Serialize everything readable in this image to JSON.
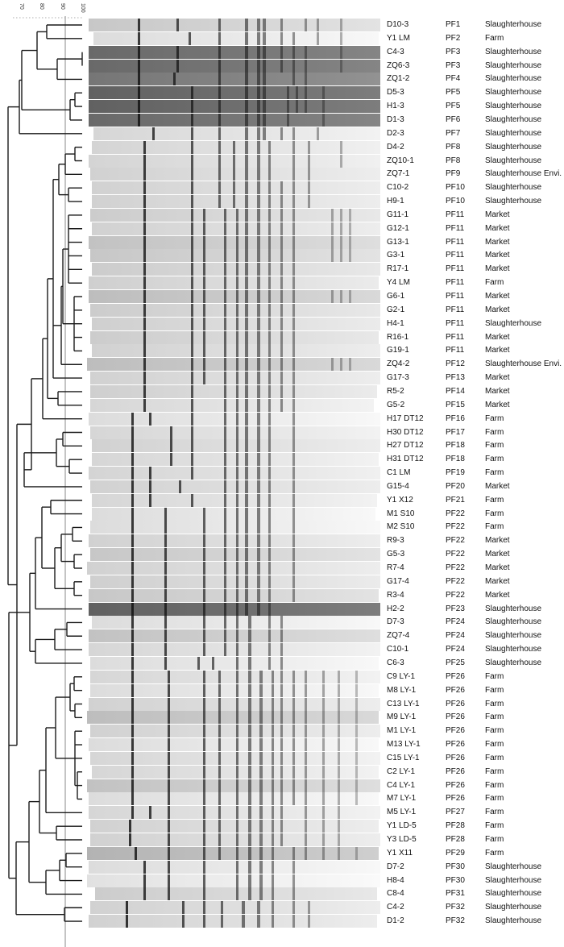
{
  "scale": {
    "ticks": [
      "70",
      "80",
      "90",
      "100"
    ],
    "cutoff": 90
  },
  "colors": {
    "tree": "#1a1a1a",
    "cutoff_line": "#888888",
    "text": "#111111"
  },
  "isolates": [
    {
      "id": "D10-3",
      "pattern": "PF1",
      "source": "Slaughterhouse",
      "shade": 0.82,
      "bands": [
        0.18,
        0.31,
        0.45,
        0.54,
        0.58,
        0.6,
        0.66,
        0.74,
        0.78,
        0.86
      ]
    },
    {
      "id": "Y1 LM",
      "pattern": "PF2",
      "source": "Farm",
      "shade": 0.9,
      "bands": [
        0.18,
        0.35,
        0.45,
        0.54,
        0.58,
        0.6,
        0.66,
        0.7,
        0.78,
        0.86
      ]
    },
    {
      "id": "C4-3",
      "pattern": "PF3",
      "source": "Slaughterhouse",
      "shade": 0.45,
      "bands": [
        0.18,
        0.31,
        0.45,
        0.54,
        0.58,
        0.6,
        0.66,
        0.7,
        0.74,
        0.86
      ]
    },
    {
      "id": "ZQ6-3",
      "pattern": "PF3",
      "source": "Slaughterhouse",
      "shade": 0.45,
      "bands": [
        0.18,
        0.31,
        0.45,
        0.54,
        0.58,
        0.6,
        0.66,
        0.7,
        0.74,
        0.86
      ]
    },
    {
      "id": "ZQ1-2",
      "pattern": "PF4",
      "source": "Slaughterhouse",
      "shade": 0.5,
      "bands": [
        0.18,
        0.3,
        0.45,
        0.54,
        0.58,
        0.6,
        0.7,
        0.74
      ]
    },
    {
      "id": "D5-3",
      "pattern": "PF5",
      "source": "Slaughterhouse",
      "shade": 0.42,
      "bands": [
        0.18,
        0.36,
        0.45,
        0.54,
        0.58,
        0.6,
        0.68,
        0.71,
        0.74,
        0.8
      ]
    },
    {
      "id": "H1-3",
      "pattern": "PF5",
      "source": "Slaughterhouse",
      "shade": 0.42,
      "bands": [
        0.18,
        0.36,
        0.45,
        0.54,
        0.58,
        0.6,
        0.68,
        0.71,
        0.74,
        0.8
      ]
    },
    {
      "id": "D1-3",
      "pattern": "PF6",
      "source": "Slaughterhouse",
      "shade": 0.45,
      "bands": [
        0.18,
        0.36,
        0.45,
        0.54,
        0.58,
        0.6,
        0.68,
        0.8
      ]
    },
    {
      "id": "D2-3",
      "pattern": "PF7",
      "source": "Slaughterhouse",
      "shade": 0.88,
      "bands": [
        0.23,
        0.36,
        0.45,
        0.54,
        0.58,
        0.6,
        0.66,
        0.7,
        0.78
      ]
    },
    {
      "id": "D4-2",
      "pattern": "PF8",
      "source": "Slaughterhouse",
      "shade": 0.87,
      "bands": [
        0.2,
        0.36,
        0.45,
        0.5,
        0.54,
        0.58,
        0.62,
        0.7,
        0.75,
        0.86
      ]
    },
    {
      "id": "ZQ10-1",
      "pattern": "PF8",
      "source": "Slaughterhouse",
      "shade": 0.87,
      "bands": [
        0.2,
        0.36,
        0.45,
        0.5,
        0.54,
        0.58,
        0.62,
        0.7,
        0.75,
        0.86
      ]
    },
    {
      "id": "ZQ7-1",
      "pattern": "PF9",
      "source": "Slaughterhouse Envi.",
      "shade": 0.86,
      "bands": [
        0.2,
        0.36,
        0.45,
        0.5,
        0.54,
        0.58,
        0.62,
        0.7,
        0.75
      ]
    },
    {
      "id": "C10-2",
      "pattern": "PF10",
      "source": "Slaughterhouse",
      "shade": 0.86,
      "bands": [
        0.2,
        0.36,
        0.45,
        0.5,
        0.54,
        0.58,
        0.62,
        0.66,
        0.7,
        0.75
      ]
    },
    {
      "id": "H9-1",
      "pattern": "PF10",
      "source": "Slaughterhouse",
      "shade": 0.86,
      "bands": [
        0.2,
        0.36,
        0.45,
        0.5,
        0.54,
        0.58,
        0.62,
        0.66,
        0.7,
        0.75
      ]
    },
    {
      "id": "G11-1",
      "pattern": "PF11",
      "source": "Market",
      "shade": 0.84,
      "bands": [
        0.2,
        0.36,
        0.4,
        0.47,
        0.51,
        0.54,
        0.58,
        0.62,
        0.66,
        0.7,
        0.83,
        0.86,
        0.89
      ]
    },
    {
      "id": "G12-1",
      "pattern": "PF11",
      "source": "Market",
      "shade": 0.86,
      "bands": [
        0.2,
        0.36,
        0.4,
        0.47,
        0.51,
        0.54,
        0.58,
        0.62,
        0.66,
        0.7,
        0.83,
        0.86,
        0.89
      ]
    },
    {
      "id": "G13-1",
      "pattern": "PF11",
      "source": "Market",
      "shade": 0.8,
      "bands": [
        0.2,
        0.36,
        0.4,
        0.47,
        0.51,
        0.54,
        0.58,
        0.62,
        0.66,
        0.7,
        0.83,
        0.86,
        0.89
      ]
    },
    {
      "id": "G3-1",
      "pattern": "PF11",
      "source": "Market",
      "shade": 0.82,
      "bands": [
        0.2,
        0.36,
        0.4,
        0.47,
        0.51,
        0.54,
        0.58,
        0.62,
        0.66,
        0.7,
        0.83,
        0.86,
        0.89
      ]
    },
    {
      "id": "R17-1",
      "pattern": "PF11",
      "source": "Market",
      "shade": 0.84,
      "bands": [
        0.2,
        0.36,
        0.4,
        0.47,
        0.51,
        0.54,
        0.58,
        0.62,
        0.66,
        0.7
      ]
    },
    {
      "id": "Y4 LM",
      "pattern": "PF11",
      "source": "Farm",
      "shade": 0.85,
      "bands": [
        0.2,
        0.36,
        0.4,
        0.47,
        0.51,
        0.54,
        0.58,
        0.62,
        0.66,
        0.7
      ]
    },
    {
      "id": "G6-1",
      "pattern": "PF11",
      "source": "Market",
      "shade": 0.78,
      "bands": [
        0.2,
        0.36,
        0.4,
        0.47,
        0.51,
        0.54,
        0.58,
        0.62,
        0.66,
        0.7,
        0.83,
        0.86,
        0.89
      ]
    },
    {
      "id": "G2-1",
      "pattern": "PF11",
      "source": "Market",
      "shade": 0.84,
      "bands": [
        0.2,
        0.36,
        0.4,
        0.47,
        0.51,
        0.54,
        0.58,
        0.62,
        0.66,
        0.7
      ]
    },
    {
      "id": "H4-1",
      "pattern": "PF11",
      "source": "Slaughterhouse",
      "shade": 0.85,
      "bands": [
        0.2,
        0.36,
        0.4,
        0.47,
        0.51,
        0.54,
        0.58,
        0.62,
        0.66,
        0.7
      ]
    },
    {
      "id": "R16-1",
      "pattern": "PF11",
      "source": "Market",
      "shade": 0.84,
      "bands": [
        0.2,
        0.36,
        0.4,
        0.47,
        0.51,
        0.54,
        0.58,
        0.62,
        0.66,
        0.7
      ]
    },
    {
      "id": "G19-1",
      "pattern": "PF11",
      "source": "Market",
      "shade": 0.86,
      "bands": [
        0.2,
        0.36,
        0.4,
        0.47,
        0.51,
        0.54,
        0.58,
        0.62,
        0.66,
        0.7
      ]
    },
    {
      "id": "ZQ4-2",
      "pattern": "PF12",
      "source": "Slaughterhouse Envi.",
      "shade": 0.78,
      "bands": [
        0.2,
        0.36,
        0.4,
        0.47,
        0.51,
        0.54,
        0.58,
        0.62,
        0.66,
        0.7,
        0.83,
        0.86,
        0.89
      ]
    },
    {
      "id": "G17-3",
      "pattern": "PF13",
      "source": "Market",
      "shade": 0.86,
      "bands": [
        0.2,
        0.36,
        0.4,
        0.47,
        0.51,
        0.54,
        0.58,
        0.62,
        0.66,
        0.7
      ]
    },
    {
      "id": "R5-2",
      "pattern": "PF14",
      "source": "Market",
      "shade": 0.85,
      "bands": [
        0.2,
        0.36,
        0.47,
        0.51,
        0.54,
        0.58,
        0.62,
        0.66,
        0.7
      ]
    },
    {
      "id": "G5-2",
      "pattern": "PF15",
      "source": "Market",
      "shade": 0.88,
      "bands": [
        0.2,
        0.36,
        0.47,
        0.51,
        0.54,
        0.58,
        0.62,
        0.66,
        0.7
      ]
    },
    {
      "id": "H17 DT12",
      "pattern": "PF16",
      "source": "Farm",
      "shade": 0.9,
      "bands": [
        0.16,
        0.22,
        0.36,
        0.47,
        0.51,
        0.54,
        0.58,
        0.62,
        0.7
      ]
    },
    {
      "id": "H30 DT12",
      "pattern": "PF17",
      "source": "Farm",
      "shade": 0.88,
      "bands": [
        0.16,
        0.29,
        0.36,
        0.47,
        0.51,
        0.54,
        0.58,
        0.62,
        0.7
      ]
    },
    {
      "id": "H27 DT12",
      "pattern": "PF18",
      "source": "Farm",
      "shade": 0.86,
      "bands": [
        0.16,
        0.29,
        0.36,
        0.47,
        0.51,
        0.54,
        0.58,
        0.62,
        0.7
      ]
    },
    {
      "id": "H31 DT12",
      "pattern": "PF18",
      "source": "Farm",
      "shade": 0.88,
      "bands": [
        0.16,
        0.29,
        0.36,
        0.47,
        0.51,
        0.54,
        0.58,
        0.62,
        0.7
      ]
    },
    {
      "id": "C1 LM",
      "pattern": "PF19",
      "source": "Farm",
      "shade": 0.87,
      "bands": [
        0.16,
        0.22,
        0.36,
        0.47,
        0.51,
        0.54,
        0.58,
        0.62,
        0.7
      ]
    },
    {
      "id": "G15-4",
      "pattern": "PF20",
      "source": "Market",
      "shade": 0.86,
      "bands": [
        0.16,
        0.22,
        0.32,
        0.47,
        0.51,
        0.54,
        0.58,
        0.62,
        0.7
      ]
    },
    {
      "id": "Y1 X12",
      "pattern": "PF21",
      "source": "Farm",
      "shade": 0.88,
      "bands": [
        0.16,
        0.22,
        0.36,
        0.47,
        0.51,
        0.54,
        0.58,
        0.62,
        0.7
      ]
    },
    {
      "id": "M1 S10",
      "pattern": "PF22",
      "source": "Farm",
      "shade": 0.9,
      "bands": [
        0.16,
        0.27,
        0.4,
        0.47,
        0.51,
        0.54,
        0.58,
        0.62,
        0.7
      ]
    },
    {
      "id": "M2 S10",
      "pattern": "PF22",
      "source": "Farm",
      "shade": 0.9,
      "bands": [
        0.16,
        0.27,
        0.4,
        0.47,
        0.51,
        0.54,
        0.58,
        0.62,
        0.7
      ]
    },
    {
      "id": "R9-3",
      "pattern": "PF22",
      "source": "Market",
      "shade": 0.86,
      "bands": [
        0.16,
        0.27,
        0.4,
        0.47,
        0.51,
        0.54,
        0.58,
        0.62,
        0.7
      ]
    },
    {
      "id": "G5-3",
      "pattern": "PF22",
      "source": "Market",
      "shade": 0.82,
      "bands": [
        0.16,
        0.27,
        0.4,
        0.47,
        0.51,
        0.54,
        0.58,
        0.62,
        0.7
      ]
    },
    {
      "id": "R7-4",
      "pattern": "PF22",
      "source": "Market",
      "shade": 0.86,
      "bands": [
        0.16,
        0.27,
        0.4,
        0.47,
        0.51,
        0.54,
        0.58,
        0.62,
        0.7
      ]
    },
    {
      "id": "G17-4",
      "pattern": "PF22",
      "source": "Market",
      "shade": 0.85,
      "bands": [
        0.16,
        0.27,
        0.4,
        0.47,
        0.51,
        0.54,
        0.58,
        0.62,
        0.7
      ]
    },
    {
      "id": "R3-4",
      "pattern": "PF22",
      "source": "Market",
      "shade": 0.82,
      "bands": [
        0.16,
        0.27,
        0.4,
        0.47,
        0.51,
        0.54,
        0.58,
        0.62,
        0.7
      ]
    },
    {
      "id": "H2-2",
      "pattern": "PF23",
      "source": "Slaughterhouse",
      "shade": 0.42,
      "bands": [
        0.16,
        0.27,
        0.4,
        0.47,
        0.51,
        0.54,
        0.58,
        0.62
      ]
    },
    {
      "id": "D7-3",
      "pattern": "PF24",
      "source": "Slaughterhouse",
      "shade": 0.9,
      "bands": [
        0.16,
        0.27,
        0.4,
        0.47,
        0.51,
        0.55,
        0.62,
        0.66
      ]
    },
    {
      "id": "ZQ7-4",
      "pattern": "PF24",
      "source": "Slaughterhouse",
      "shade": 0.8,
      "bands": [
        0.16,
        0.27,
        0.4,
        0.47,
        0.51,
        0.55,
        0.62,
        0.66
      ]
    },
    {
      "id": "C10-1",
      "pattern": "PF24",
      "source": "Slaughterhouse",
      "shade": 0.88,
      "bands": [
        0.16,
        0.27,
        0.4,
        0.47,
        0.51,
        0.55,
        0.62,
        0.66
      ]
    },
    {
      "id": "C6-3",
      "pattern": "PF25",
      "source": "Slaughterhouse",
      "shade": 0.9,
      "bands": [
        0.16,
        0.27,
        0.38,
        0.43,
        0.51,
        0.55,
        0.62,
        0.66
      ]
    },
    {
      "id": "C9 LY-1",
      "pattern": "PF26",
      "source": "Farm",
      "shade": 0.88,
      "bands": [
        0.16,
        0.28,
        0.4,
        0.45,
        0.51,
        0.55,
        0.59,
        0.63,
        0.66,
        0.7,
        0.74,
        0.8,
        0.85,
        0.91
      ]
    },
    {
      "id": "M8 LY-1",
      "pattern": "PF26",
      "source": "Farm",
      "shade": 0.9,
      "bands": [
        0.16,
        0.28,
        0.4,
        0.45,
        0.51,
        0.55,
        0.59,
        0.63,
        0.66,
        0.7,
        0.74,
        0.8,
        0.85,
        0.91
      ]
    },
    {
      "id": "C13 LY-1",
      "pattern": "PF26",
      "source": "Farm",
      "shade": 0.86,
      "bands": [
        0.16,
        0.28,
        0.4,
        0.45,
        0.51,
        0.55,
        0.59,
        0.63,
        0.66,
        0.7,
        0.74,
        0.8,
        0.85,
        0.91
      ]
    },
    {
      "id": "M9 LY-1",
      "pattern": "PF26",
      "source": "Farm",
      "shade": 0.78,
      "bands": [
        0.16,
        0.28,
        0.4,
        0.45,
        0.51,
        0.55,
        0.59,
        0.63,
        0.66,
        0.7,
        0.74,
        0.8,
        0.85,
        0.91
      ]
    },
    {
      "id": "M1 LY-1",
      "pattern": "PF26",
      "source": "Farm",
      "shade": 0.86,
      "bands": [
        0.16,
        0.28,
        0.4,
        0.45,
        0.51,
        0.55,
        0.59,
        0.63,
        0.66,
        0.7,
        0.74,
        0.8,
        0.85,
        0.91
      ]
    },
    {
      "id": "M13 LY-1",
      "pattern": "PF26",
      "source": "Farm",
      "shade": 0.9,
      "bands": [
        0.16,
        0.28,
        0.4,
        0.45,
        0.51,
        0.55,
        0.59,
        0.63,
        0.66,
        0.7,
        0.74,
        0.8,
        0.85,
        0.91
      ]
    },
    {
      "id": "C15 LY-1",
      "pattern": "PF26",
      "source": "Farm",
      "shade": 0.88,
      "bands": [
        0.16,
        0.28,
        0.4,
        0.45,
        0.51,
        0.55,
        0.59,
        0.63,
        0.66,
        0.7,
        0.74,
        0.8,
        0.85,
        0.91
      ]
    },
    {
      "id": "C2 LY-1",
      "pattern": "PF26",
      "source": "Farm",
      "shade": 0.88,
      "bands": [
        0.16,
        0.28,
        0.4,
        0.45,
        0.51,
        0.55,
        0.59,
        0.63,
        0.66,
        0.7,
        0.74,
        0.8,
        0.85,
        0.91
      ]
    },
    {
      "id": "C4 LY-1",
      "pattern": "PF26",
      "source": "Farm",
      "shade": 0.8,
      "bands": [
        0.16,
        0.28,
        0.4,
        0.45,
        0.51,
        0.55,
        0.59,
        0.63,
        0.66,
        0.7,
        0.74,
        0.8,
        0.85,
        0.91
      ]
    },
    {
      "id": "M7 LY-1",
      "pattern": "PF26",
      "source": "Farm",
      "shade": 0.9,
      "bands": [
        0.16,
        0.28,
        0.4,
        0.45,
        0.51,
        0.55,
        0.59,
        0.63,
        0.66,
        0.7,
        0.74,
        0.8,
        0.85,
        0.91
      ]
    },
    {
      "id": "M5 LY-1",
      "pattern": "PF27",
      "source": "Farm",
      "shade": 0.88,
      "bands": [
        0.16,
        0.22,
        0.28,
        0.4,
        0.45,
        0.51,
        0.55,
        0.59,
        0.63,
        0.66,
        0.74,
        0.8,
        0.85
      ]
    },
    {
      "id": "Y1 LD-5",
      "pattern": "PF28",
      "source": "Farm",
      "shade": 0.86,
      "bands": [
        0.15,
        0.28,
        0.4,
        0.45,
        0.51,
        0.55,
        0.59,
        0.63,
        0.66,
        0.74,
        0.8,
        0.85
      ]
    },
    {
      "id": "Y3 LD-5",
      "pattern": "PF28",
      "source": "Farm",
      "shade": 0.86,
      "bands": [
        0.15,
        0.28,
        0.4,
        0.45,
        0.51,
        0.55,
        0.59,
        0.63,
        0.66,
        0.74,
        0.8,
        0.85
      ]
    },
    {
      "id": "Y1 X11",
      "pattern": "PF29",
      "source": "Farm",
      "shade": 0.74,
      "bands": [
        0.17,
        0.28,
        0.4,
        0.45,
        0.51,
        0.55,
        0.59,
        0.63,
        0.7,
        0.74,
        0.8,
        0.85,
        0.91
      ]
    },
    {
      "id": "D7-2",
      "pattern": "PF30",
      "source": "Slaughterhouse",
      "shade": 0.9,
      "bands": [
        0.2,
        0.28,
        0.4,
        0.51,
        0.55,
        0.59,
        0.63,
        0.7
      ]
    },
    {
      "id": "H8-4",
      "pattern": "PF30",
      "source": "Slaughterhouse",
      "shade": 0.92,
      "bands": [
        0.2,
        0.28,
        0.4,
        0.51,
        0.55,
        0.59,
        0.63,
        0.7
      ]
    },
    {
      "id": "C8-4",
      "pattern": "PF31",
      "source": "Slaughterhouse",
      "shade": 0.84,
      "bands": [
        0.2,
        0.28,
        0.4,
        0.51,
        0.55,
        0.59,
        0.63,
        0.7
      ]
    },
    {
      "id": "C4-2",
      "pattern": "PF32",
      "source": "Slaughterhouse",
      "shade": 0.86,
      "bands": [
        0.14,
        0.33,
        0.4,
        0.46,
        0.53,
        0.58,
        0.63,
        0.7,
        0.75
      ]
    },
    {
      "id": "D1-2",
      "pattern": "PF32",
      "source": "Slaughterhouse",
      "shade": 0.86,
      "bands": [
        0.14,
        0.33,
        0.4,
        0.46,
        0.53,
        0.58,
        0.63,
        0.7,
        0.75
      ]
    }
  ],
  "tree": [
    [
      [
        0,
        1,
        75
      ],
      [
        2,
        3,
        100
      ],
      [
        4,
        80
      ],
      [
        5,
        6,
        98
      ],
      [
        7,
        96
      ],
      [
        8,
        85
      ]
    ],
    [
      [
        [
          9,
          10,
          98
        ],
        [
          11,
          93
        ],
        [
          12,
          13,
          96
        ]
      ],
      82,
      [
        14,
        15,
        16,
        17,
        18,
        19,
        20,
        21,
        22,
        23,
        24,
        25,
        26,
        27,
        28
      ]
    ]
  ]
}
